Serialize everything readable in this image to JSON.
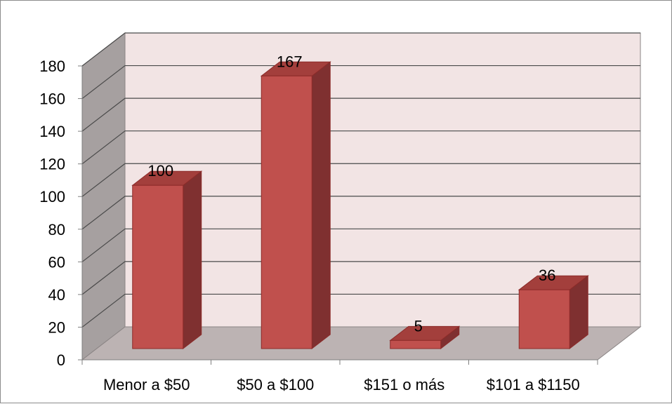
{
  "chart_data": {
    "type": "bar",
    "style": "3d-column",
    "title": "",
    "xlabel": "",
    "ylabel": "",
    "categories": [
      "Menor a $50",
      "$50 a $100",
      "$151 o más",
      "$101 a $1150"
    ],
    "values": [
      100,
      167,
      5,
      36
    ],
    "data_labels": [
      "100",
      "167",
      "5",
      "36"
    ],
    "ylim": [
      0,
      180
    ],
    "y_ticks": [
      0,
      20,
      40,
      60,
      80,
      100,
      120,
      140,
      160,
      180
    ],
    "y_tick_labels": [
      "0",
      "20",
      "40",
      "60",
      "80",
      "100",
      "120",
      "140",
      "160",
      "180"
    ],
    "grid": true,
    "legend": "none",
    "colors": {
      "bar_front": "#c0504d",
      "bar_side": "#7f3030",
      "bar_top": "#a33f3c",
      "bar_edge": "#8c2b29",
      "back_wall": "#f2e4e4",
      "side_wall": "#a6a0a0",
      "floor": "#bcb3b3",
      "gridline": "#4a4a4a"
    }
  }
}
